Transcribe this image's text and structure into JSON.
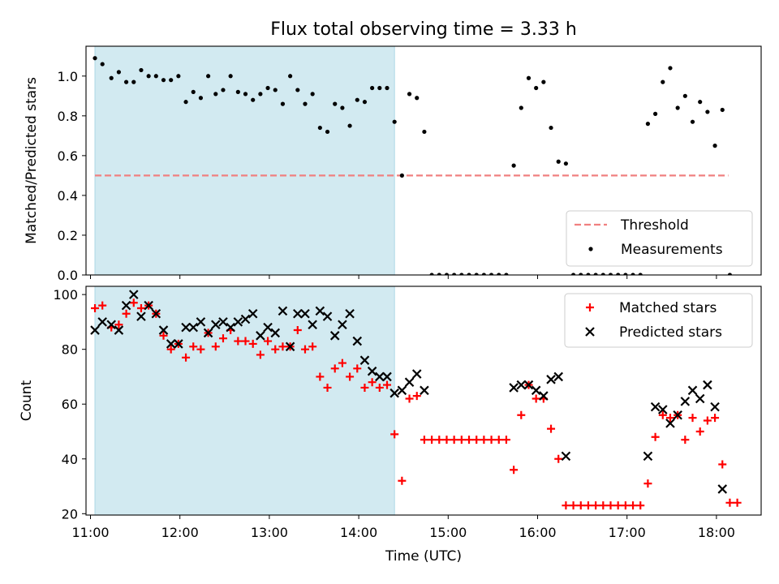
{
  "title": "Flux total observing time = 3.33 h",
  "colors": {
    "threshold": "#f08080",
    "measurement": "#000000",
    "matched": "#ff0000",
    "predicted": "#000000",
    "shade": "#add8e6"
  },
  "chart_data": [
    {
      "type": "scatter",
      "ylabel": "Matched/Predicted stars",
      "xlim": [
        "10:57",
        "18:30"
      ],
      "ylim": [
        0,
        1.15
      ],
      "yticks": [
        "0.0",
        "0.2",
        "0.4",
        "0.6",
        "0.8",
        "1.0"
      ],
      "shaded_interval": [
        "11:03",
        "14:24"
      ],
      "threshold": {
        "value": 0.5,
        "x_start": "11:03",
        "x_end": "18:08"
      },
      "legend": [
        "Threshold",
        "Measurements"
      ],
      "legend_position": "lower right",
      "series": [
        {
          "name": "Measurements",
          "points": [
            [
              "11:03",
              1.09
            ],
            [
              "11:08",
              1.06
            ],
            [
              "11:14",
              0.99
            ],
            [
              "11:19",
              1.02
            ],
            [
              "11:24",
              0.97
            ],
            [
              "11:29",
              0.97
            ],
            [
              "11:34",
              1.03
            ],
            [
              "11:39",
              1.0
            ],
            [
              "11:44",
              1.0
            ],
            [
              "11:49",
              0.98
            ],
            [
              "11:54",
              0.98
            ],
            [
              "11:59",
              1.0
            ],
            [
              "12:04",
              0.87
            ],
            [
              "12:09",
              0.92
            ],
            [
              "12:14",
              0.89
            ],
            [
              "12:19",
              1.0
            ],
            [
              "12:24",
              0.91
            ],
            [
              "12:29",
              0.93
            ],
            [
              "12:34",
              1.0
            ],
            [
              "12:39",
              0.92
            ],
            [
              "12:44",
              0.91
            ],
            [
              "12:49",
              0.88
            ],
            [
              "12:54",
              0.91
            ],
            [
              "12:59",
              0.94
            ],
            [
              "13:04",
              0.93
            ],
            [
              "13:09",
              0.86
            ],
            [
              "13:14",
              1.0
            ],
            [
              "13:19",
              0.93
            ],
            [
              "13:24",
              0.86
            ],
            [
              "13:29",
              0.91
            ],
            [
              "13:34",
              0.74
            ],
            [
              "13:39",
              0.72
            ],
            [
              "13:44",
              0.86
            ],
            [
              "13:49",
              0.84
            ],
            [
              "13:54",
              0.75
            ],
            [
              "13:59",
              0.88
            ],
            [
              "14:04",
              0.87
            ],
            [
              "14:09",
              0.94
            ],
            [
              "14:14",
              0.94
            ],
            [
              "14:19",
              0.94
            ],
            [
              "14:24",
              0.77
            ],
            [
              "14:29",
              0.5
            ],
            [
              "14:34",
              0.91
            ],
            [
              "14:39",
              0.89
            ],
            [
              "14:44",
              0.72
            ],
            [
              "14:49",
              0.0
            ],
            [
              "14:54",
              0.0
            ],
            [
              "14:59",
              0.0
            ],
            [
              "15:04",
              0.0
            ],
            [
              "15:09",
              0.0
            ],
            [
              "15:14",
              0.0
            ],
            [
              "15:19",
              0.0
            ],
            [
              "15:24",
              0.0
            ],
            [
              "15:29",
              0.0
            ],
            [
              "15:34",
              0.0
            ],
            [
              "15:39",
              0.0
            ],
            [
              "15:44",
              0.55
            ],
            [
              "15:49",
              0.84
            ],
            [
              "15:54",
              0.99
            ],
            [
              "15:59",
              0.94
            ],
            [
              "16:04",
              0.97
            ],
            [
              "16:09",
              0.74
            ],
            [
              "16:14",
              0.57
            ],
            [
              "16:19",
              0.56
            ],
            [
              "16:24",
              0.0
            ],
            [
              "16:29",
              0.0
            ],
            [
              "16:34",
              0.0
            ],
            [
              "16:39",
              0.0
            ],
            [
              "16:44",
              0.0
            ],
            [
              "16:49",
              0.0
            ],
            [
              "16:54",
              0.0
            ],
            [
              "16:59",
              0.0
            ],
            [
              "17:04",
              0.0
            ],
            [
              "17:09",
              0.0
            ],
            [
              "17:14",
              0.76
            ],
            [
              "17:19",
              0.81
            ],
            [
              "17:24",
              0.97
            ],
            [
              "17:29",
              1.04
            ],
            [
              "17:34",
              0.84
            ],
            [
              "17:39",
              0.9
            ],
            [
              "17:44",
              0.77
            ],
            [
              "17:49",
              0.87
            ],
            [
              "17:54",
              0.82
            ],
            [
              "17:59",
              0.65
            ],
            [
              "18:04",
              0.83
            ],
            [
              "18:09",
              0.0
            ]
          ]
        }
      ]
    },
    {
      "type": "scatter",
      "xlabel": "Time (UTC)",
      "ylabel": "Count",
      "xlim": [
        "10:57",
        "18:30"
      ],
      "ylim": [
        19.5,
        103
      ],
      "yticks": [
        "20",
        "40",
        "60",
        "80",
        "100"
      ],
      "xticks": [
        "11:00",
        "12:00",
        "13:00",
        "14:00",
        "15:00",
        "16:00",
        "17:00",
        "18:00"
      ],
      "shaded_interval": [
        "11:03",
        "14:24"
      ],
      "legend": [
        "Matched stars",
        "Predicted stars"
      ],
      "legend_position": "upper right",
      "series": [
        {
          "name": "Matched stars",
          "marker": "+",
          "points": [
            [
              "11:03",
              95
            ],
            [
              "11:08",
              96
            ],
            [
              "11:14",
              88
            ],
            [
              "11:19",
              89
            ],
            [
              "11:24",
              93
            ],
            [
              "11:29",
              97
            ],
            [
              "11:34",
              95
            ],
            [
              "11:39",
              96
            ],
            [
              "11:44",
              93
            ],
            [
              "11:49",
              85
            ],
            [
              "11:54",
              80
            ],
            [
              "11:59",
              82
            ],
            [
              "12:04",
              77
            ],
            [
              "12:09",
              81
            ],
            [
              "12:14",
              80
            ],
            [
              "12:19",
              86
            ],
            [
              "12:24",
              81
            ],
            [
              "12:29",
              84
            ],
            [
              "12:34",
              87
            ],
            [
              "12:39",
              83
            ],
            [
              "12:44",
              83
            ],
            [
              "12:49",
              82
            ],
            [
              "12:54",
              78
            ],
            [
              "12:59",
              83
            ],
            [
              "13:04",
              80
            ],
            [
              "13:09",
              81
            ],
            [
              "13:14",
              81
            ],
            [
              "13:19",
              87
            ],
            [
              "13:24",
              80
            ],
            [
              "13:29",
              81
            ],
            [
              "13:34",
              70
            ],
            [
              "13:39",
              66
            ],
            [
              "13:44",
              73
            ],
            [
              "13:49",
              75
            ],
            [
              "13:54",
              70
            ],
            [
              "13:59",
              73
            ],
            [
              "14:04",
              66
            ],
            [
              "14:09",
              68
            ],
            [
              "14:14",
              66
            ],
            [
              "14:19",
              67
            ],
            [
              "14:24",
              49
            ],
            [
              "14:29",
              32
            ],
            [
              "14:34",
              62
            ],
            [
              "14:39",
              63
            ],
            [
              "14:44",
              47
            ],
            [
              "14:49",
              47
            ],
            [
              "14:54",
              47
            ],
            [
              "14:59",
              47
            ],
            [
              "15:04",
              47
            ],
            [
              "15:09",
              47
            ],
            [
              "15:14",
              47
            ],
            [
              "15:19",
              47
            ],
            [
              "15:24",
              47
            ],
            [
              "15:29",
              47
            ],
            [
              "15:34",
              47
            ],
            [
              "15:39",
              47
            ],
            [
              "15:44",
              36
            ],
            [
              "15:49",
              56
            ],
            [
              "15:54",
              67
            ],
            [
              "15:59",
              62
            ],
            [
              "16:04",
              62
            ],
            [
              "16:09",
              51
            ],
            [
              "16:14",
              40
            ],
            [
              "16:19",
              23
            ],
            [
              "16:24",
              23
            ],
            [
              "16:29",
              23
            ],
            [
              "16:34",
              23
            ],
            [
              "16:39",
              23
            ],
            [
              "16:44",
              23
            ],
            [
              "16:49",
              23
            ],
            [
              "16:54",
              23
            ],
            [
              "16:59",
              23
            ],
            [
              "17:04",
              23
            ],
            [
              "17:09",
              23
            ],
            [
              "17:14",
              31
            ],
            [
              "17:19",
              48
            ],
            [
              "17:24",
              56
            ],
            [
              "17:29",
              55
            ],
            [
              "17:34",
              56
            ],
            [
              "17:39",
              47
            ],
            [
              "17:44",
              55
            ],
            [
              "17:49",
              50
            ],
            [
              "17:54",
              54
            ],
            [
              "17:59",
              55
            ],
            [
              "18:04",
              38
            ],
            [
              "18:09",
              24
            ],
            [
              "18:14",
              24
            ]
          ]
        },
        {
          "name": "Predicted stars",
          "marker": "x",
          "points": [
            [
              "11:03",
              87
            ],
            [
              "11:08",
              90
            ],
            [
              "11:14",
              89
            ],
            [
              "11:19",
              87
            ],
            [
              "11:24",
              96
            ],
            [
              "11:29",
              100
            ],
            [
              "11:34",
              92
            ],
            [
              "11:39",
              96
            ],
            [
              "11:44",
              93
            ],
            [
              "11:49",
              87
            ],
            [
              "11:54",
              82
            ],
            [
              "11:59",
              82
            ],
            [
              "12:04",
              88
            ],
            [
              "12:09",
              88
            ],
            [
              "12:14",
              90
            ],
            [
              "12:19",
              86
            ],
            [
              "12:24",
              89
            ],
            [
              "12:29",
              90
            ],
            [
              "12:34",
              88
            ],
            [
              "12:39",
              90
            ],
            [
              "12:44",
              91
            ],
            [
              "12:49",
              93
            ],
            [
              "12:54",
              85
            ],
            [
              "12:59",
              88
            ],
            [
              "13:04",
              86
            ],
            [
              "13:09",
              94
            ],
            [
              "13:14",
              81
            ],
            [
              "13:19",
              93
            ],
            [
              "13:24",
              93
            ],
            [
              "13:29",
              89
            ],
            [
              "13:34",
              94
            ],
            [
              "13:39",
              92
            ],
            [
              "13:44",
              85
            ],
            [
              "13:49",
              89
            ],
            [
              "13:54",
              93
            ],
            [
              "13:59",
              83
            ],
            [
              "14:04",
              76
            ],
            [
              "14:09",
              72
            ],
            [
              "14:14",
              70
            ],
            [
              "14:19",
              70
            ],
            [
              "14:24",
              64
            ],
            [
              "14:29",
              65
            ],
            [
              "14:34",
              68
            ],
            [
              "14:39",
              71
            ],
            [
              "14:44",
              65
            ],
            [
              "15:44",
              66
            ],
            [
              "15:49",
              67
            ],
            [
              "15:54",
              67
            ],
            [
              "15:59",
              65
            ],
            [
              "16:04",
              63
            ],
            [
              "16:09",
              69
            ],
            [
              "16:14",
              70
            ],
            [
              "16:19",
              41
            ],
            [
              "17:14",
              41
            ],
            [
              "17:19",
              59
            ],
            [
              "17:24",
              58
            ],
            [
              "17:29",
              53
            ],
            [
              "17:34",
              56
            ],
            [
              "17:39",
              61
            ],
            [
              "17:44",
              65
            ],
            [
              "17:49",
              62
            ],
            [
              "17:54",
              67
            ],
            [
              "17:59",
              59
            ],
            [
              "18:04",
              29
            ]
          ]
        }
      ]
    }
  ]
}
